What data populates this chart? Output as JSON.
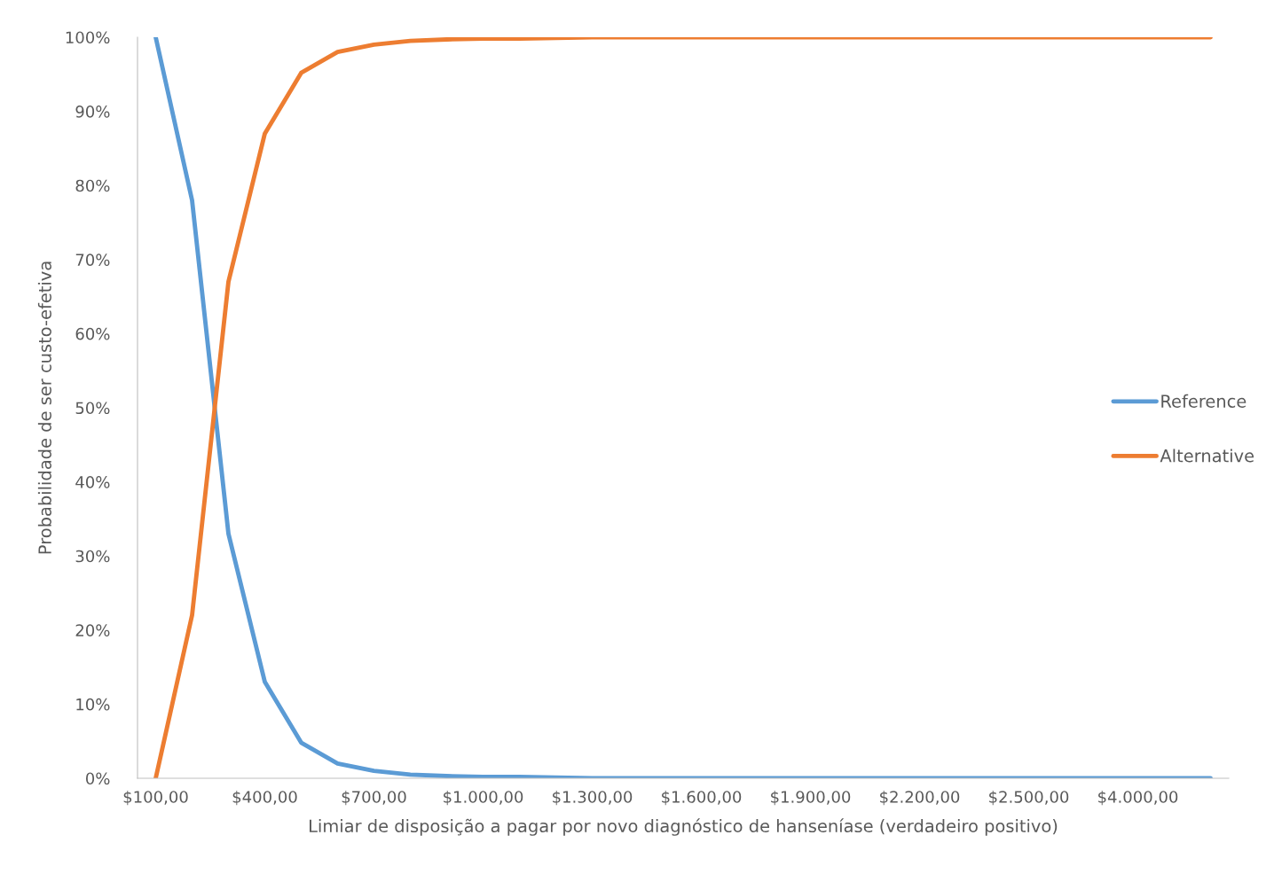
{
  "chart_data": {
    "type": "line",
    "xlabel": "Limiar de disposição a pagar por novo diagnóstico de hanseníase (verdadeiro positivo)",
    "ylabel": "Probabilidade de ser custo-efetiva",
    "categories": [
      "$100,00",
      null,
      null,
      "$400,00",
      null,
      null,
      "$700,00",
      null,
      null,
      "$1.000,00",
      null,
      null,
      "$1.300,00",
      null,
      null,
      "$1.600,00",
      null,
      null,
      "$1.900,00",
      null,
      null,
      "$2.200,00",
      null,
      null,
      "$2.500,00",
      null,
      null,
      "$4.000,00",
      null,
      null
    ],
    "series": [
      {
        "name": "Reference",
        "color": "#5b9bd5",
        "values": [
          100,
          78,
          33,
          13,
          4.8,
          2.0,
          1.0,
          0.5,
          0.3,
          0.2,
          0.2,
          0.1,
          0,
          0,
          0,
          0,
          0,
          0,
          0,
          0,
          0,
          0,
          0,
          0,
          0,
          0,
          0,
          0,
          0,
          0
        ]
      },
      {
        "name": "Alternative",
        "color": "#ed7d31",
        "values": [
          0,
          22,
          67,
          87,
          95.2,
          98.0,
          99.0,
          99.5,
          99.7,
          99.8,
          99.8,
          99.9,
          100,
          100,
          100,
          100,
          100,
          100,
          100,
          100,
          100,
          100,
          100,
          100,
          100,
          100,
          100,
          100,
          100,
          100
        ]
      }
    ],
    "ylim": [
      0,
      100
    ],
    "yticks": [
      {
        "value": 0,
        "label": "0%"
      },
      {
        "value": 10,
        "label": "10%"
      },
      {
        "value": 20,
        "label": "20%"
      },
      {
        "value": 30,
        "label": "30%"
      },
      {
        "value": 40,
        "label": "40%"
      },
      {
        "value": 50,
        "label": "50%"
      },
      {
        "value": 60,
        "label": "60%"
      },
      {
        "value": 70,
        "label": "70%"
      },
      {
        "value": 80,
        "label": "80%"
      },
      {
        "value": 90,
        "label": "90%"
      },
      {
        "value": 100,
        "label": "100%"
      }
    ],
    "grid": false,
    "legend": "right",
    "line_style": "solid",
    "marker": "none"
  }
}
